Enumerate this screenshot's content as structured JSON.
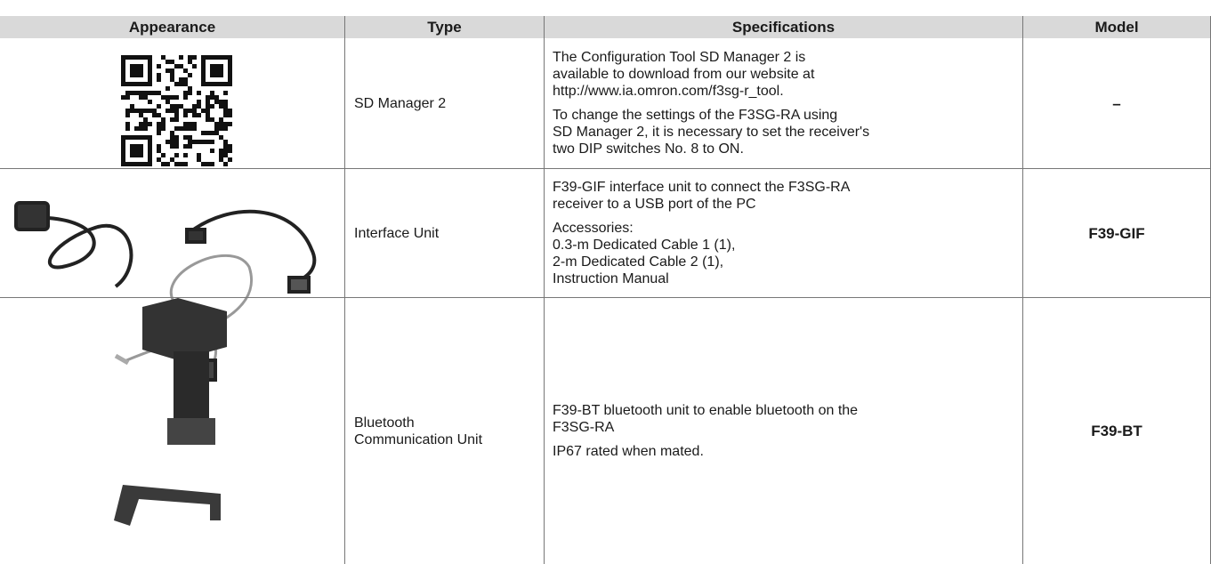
{
  "table": {
    "headers": [
      "Appearance",
      "Type",
      "Specifications",
      "Model"
    ],
    "rows": [
      {
        "type": [
          "SD Manager 2"
        ],
        "specifications": [
          [
            "The Configuration Tool SD Manager 2 is",
            "available to download from our website at",
            "http://www.ia.omron.com/f3sg-r_tool."
          ],
          [
            "To change the settings of the F3SG-RA using",
            "SD Manager 2, it is necessary to set the receiver's",
            "two DIP switches No. 8 to ON."
          ]
        ],
        "model": "–"
      },
      {
        "type": [
          "Interface Unit"
        ],
        "specifications": [
          [
            "F39-GIF interface unit to connect the F3SG-RA",
            "receiver to a USB port of the PC"
          ],
          [
            "Accessories:",
            "0.3-m Dedicated Cable 1 (1),",
            "2-m Dedicated Cable 2 (1),",
            "Instruction Manual"
          ]
        ],
        "model": "F39-GIF"
      },
      {
        "type": [
          "Bluetooth",
          "Communication Unit"
        ],
        "specifications": [
          [
            "F39-BT bluetooth unit to enable bluetooth on the",
            "F3SG-RA"
          ],
          [
            "IP67 rated when mated."
          ]
        ],
        "model": "F39-BT"
      }
    ]
  }
}
